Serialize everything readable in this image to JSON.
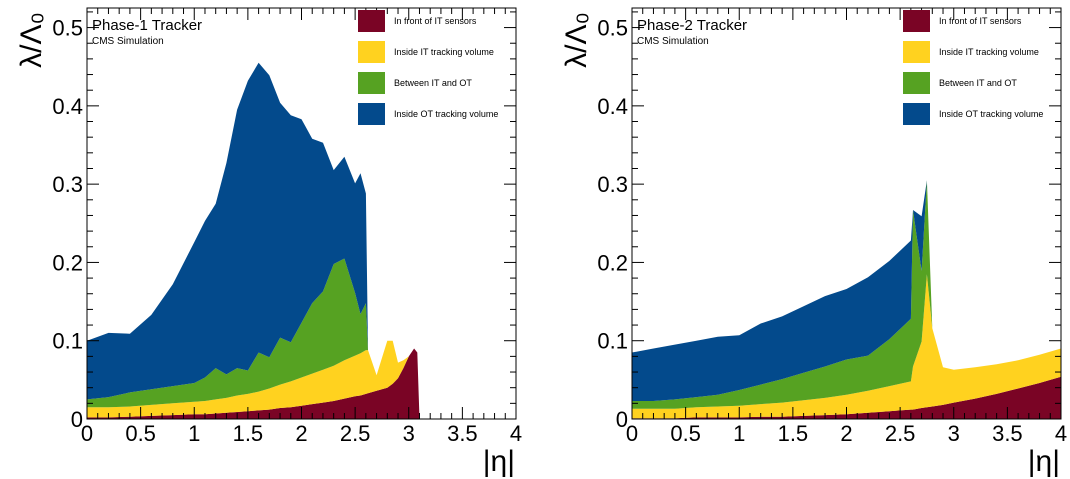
{
  "chart_data": [
    {
      "type": "area",
      "stacked": true,
      "title": "Phase-1 Tracker",
      "subtitle": "CMS Simulation",
      "xlabel": "|η|",
      "ylabel": "λ/Λ₀",
      "xlim": [
        0,
        4
      ],
      "ylim": [
        0,
        0.525
      ],
      "x_ticks": [
        "0",
        "0.5",
        "1",
        "1.5",
        "2",
        "2.5",
        "3",
        "3.5",
        "4"
      ],
      "y_ticks": [
        "0",
        "0.1",
        "0.2",
        "0.3",
        "0.4",
        "0.5"
      ],
      "legend_position": "top-right",
      "x": [
        0,
        0.2,
        0.4,
        0.6,
        0.8,
        1.0,
        1.1,
        1.2,
        1.3,
        1.4,
        1.5,
        1.6,
        1.7,
        1.8,
        1.9,
        2.0,
        2.1,
        2.2,
        2.3,
        2.4,
        2.5,
        2.55,
        2.6,
        2.62,
        2.7,
        2.8,
        2.85,
        2.9,
        2.95,
        3.0,
        3.05,
        3.08,
        3.1
      ],
      "series": [
        {
          "name": "In front of IT sensors",
          "color": "#7a0425",
          "values": [
            0.002,
            0.002,
            0.003,
            0.004,
            0.005,
            0.006,
            0.006,
            0.007,
            0.008,
            0.009,
            0.01,
            0.011,
            0.012,
            0.014,
            0.015,
            0.017,
            0.019,
            0.021,
            0.023,
            0.026,
            0.029,
            0.03,
            0.032,
            0.033,
            0.036,
            0.04,
            0.045,
            0.052,
            0.065,
            0.08,
            0.09,
            0.085,
            0.0
          ]
        },
        {
          "name": "Inside IT tracking volume",
          "color": "#ffd21f",
          "values": [
            0.013,
            0.013,
            0.013,
            0.014,
            0.015,
            0.016,
            0.017,
            0.018,
            0.019,
            0.021,
            0.022,
            0.024,
            0.027,
            0.03,
            0.033,
            0.036,
            0.039,
            0.042,
            0.045,
            0.049,
            0.052,
            0.054,
            0.056,
            0.055,
            0.02,
            0.06,
            0.055,
            0.02,
            0.01,
            0.0,
            0.0,
            0.0,
            0.0
          ]
        },
        {
          "name": "Between IT and OT",
          "color": "#56a222",
          "values": [
            0.01,
            0.013,
            0.018,
            0.02,
            0.022,
            0.024,
            0.03,
            0.04,
            0.03,
            0.035,
            0.03,
            0.05,
            0.04,
            0.06,
            0.05,
            0.07,
            0.09,
            0.1,
            0.13,
            0.13,
            0.08,
            0.05,
            0.06,
            0.0,
            0.0,
            0.0,
            0.0,
            0.0,
            0.0,
            0.0,
            0.0,
            0.0,
            0.0
          ]
        },
        {
          "name": "Inside OT tracking volume",
          "color": "#034a8c",
          "values": [
            0.075,
            0.082,
            0.075,
            0.095,
            0.13,
            0.18,
            0.2,
            0.21,
            0.27,
            0.33,
            0.37,
            0.37,
            0.36,
            0.3,
            0.29,
            0.26,
            0.21,
            0.19,
            0.12,
            0.13,
            0.14,
            0.18,
            0.14,
            0.0,
            0.0,
            0.0,
            0.0,
            0.0,
            0.0,
            0.0,
            0.0,
            0.0,
            0.0
          ]
        }
      ]
    },
    {
      "type": "area",
      "stacked": true,
      "title": "Phase-2 Tracker",
      "subtitle": "CMS Simulation",
      "xlabel": "|η|",
      "ylabel": "λ/Λ₀",
      "xlim": [
        0,
        4
      ],
      "ylim": [
        0,
        0.525
      ],
      "x_ticks": [
        "0",
        "0.5",
        "1",
        "1.5",
        "2",
        "2.5",
        "3",
        "3.5",
        "4"
      ],
      "y_ticks": [
        "0",
        "0.1",
        "0.2",
        "0.3",
        "0.4",
        "0.5"
      ],
      "legend_position": "top-right",
      "x": [
        0,
        0.2,
        0.4,
        0.6,
        0.8,
        1.0,
        1.2,
        1.4,
        1.6,
        1.8,
        2.0,
        2.2,
        2.4,
        2.5,
        2.6,
        2.62,
        2.7,
        2.75,
        2.8,
        2.9,
        3.0,
        3.2,
        3.4,
        3.6,
        3.8,
        4.0
      ],
      "series": [
        {
          "name": "In front of IT sensors",
          "color": "#7a0425",
          "values": [
            0.001,
            0.001,
            0.001,
            0.002,
            0.002,
            0.002,
            0.003,
            0.003,
            0.004,
            0.005,
            0.006,
            0.008,
            0.01,
            0.011,
            0.012,
            0.012,
            0.014,
            0.015,
            0.016,
            0.018,
            0.021,
            0.026,
            0.032,
            0.039,
            0.046,
            0.054
          ]
        },
        {
          "name": "Inside IT tracking volume",
          "color": "#ffd21f",
          "values": [
            0.012,
            0.012,
            0.012,
            0.013,
            0.014,
            0.015,
            0.016,
            0.018,
            0.02,
            0.022,
            0.025,
            0.028,
            0.032,
            0.034,
            0.036,
            0.055,
            0.085,
            0.17,
            0.1,
            0.048,
            0.042,
            0.04,
            0.038,
            0.036,
            0.036,
            0.036
          ]
        },
        {
          "name": "Between IT and OT",
          "color": "#56a222",
          "values": [
            0.01,
            0.01,
            0.012,
            0.013,
            0.015,
            0.02,
            0.025,
            0.03,
            0.035,
            0.04,
            0.045,
            0.045,
            0.06,
            0.07,
            0.08,
            0.2,
            0.09,
            0.12,
            0.0,
            0.0,
            0.0,
            0.0,
            0.0,
            0.0,
            0.0,
            0.0
          ]
        },
        {
          "name": "Inside OT tracking volume",
          "color": "#034a8c",
          "values": [
            0.062,
            0.067,
            0.07,
            0.072,
            0.074,
            0.07,
            0.078,
            0.08,
            0.085,
            0.09,
            0.09,
            0.1,
            0.1,
            0.1,
            0.1,
            0.0,
            0.07,
            0.0,
            0.0,
            0.0,
            0.0,
            0.0,
            0.0,
            0.0,
            0.0,
            0.0
          ]
        }
      ]
    }
  ]
}
